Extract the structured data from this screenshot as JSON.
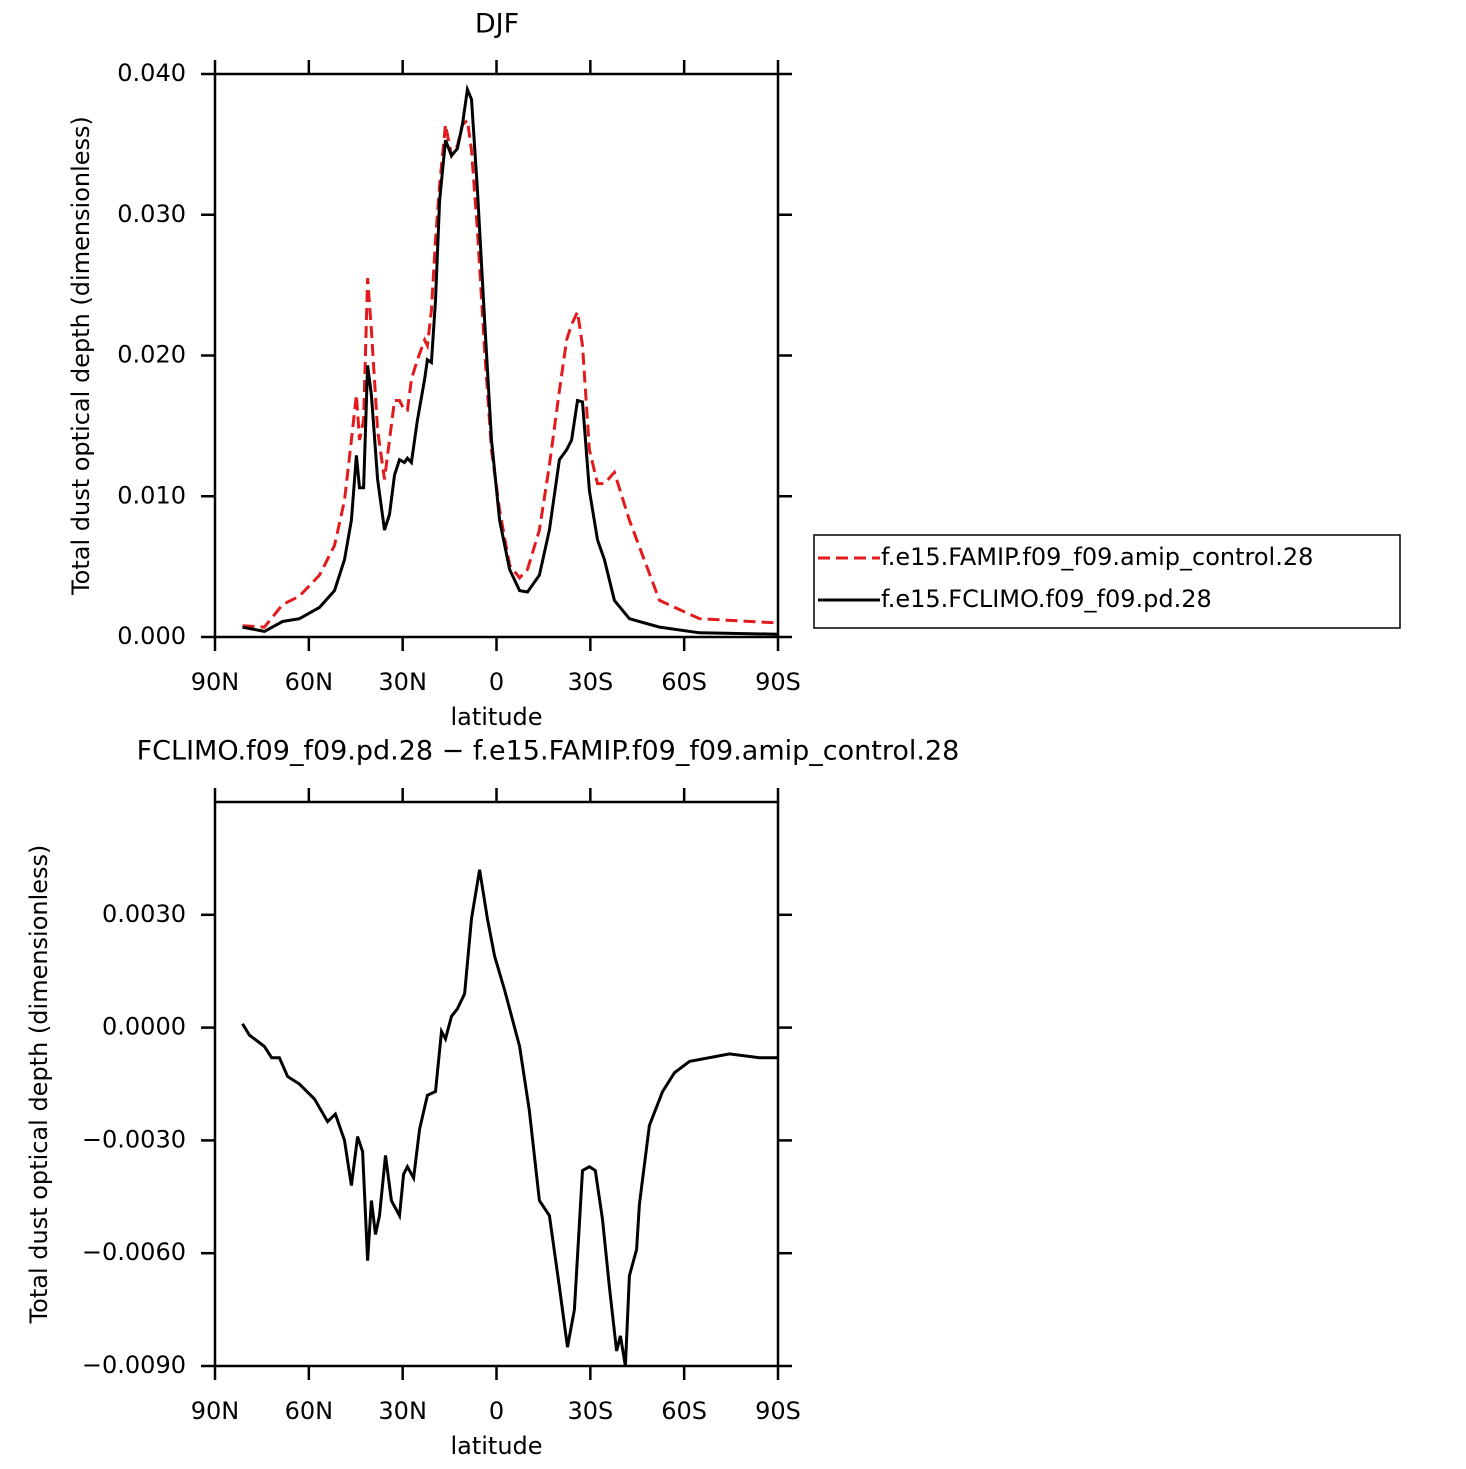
{
  "chart_data": [
    {
      "type": "line",
      "title": "DJF",
      "xlabel": "latitude",
      "ylabel": "Total dust optical depth (dimensionless)",
      "x": [
        81.2,
        74.2,
        68.4,
        63,
        56.6,
        51.8,
        48.6,
        46.4,
        44.8,
        43.8,
        42.5,
        41.2,
        40,
        38,
        35.8,
        34.2,
        32.6,
        31,
        29.4,
        28.5,
        27.2,
        25.3,
        23,
        22.1,
        20.8,
        19.5,
        18.2,
        16.3,
        14.4,
        12.5,
        10.9,
        9.3,
        8,
        6.1,
        3.8,
        1.6,
        -1,
        -4.2,
        -7.4,
        -9.9,
        -13.7,
        -16.9,
        -20.1,
        -22.4,
        -24,
        -25.9,
        -27.5,
        -29.7,
        -32.3,
        -34.5,
        -37.7,
        -42.5,
        -52.1,
        -64.9,
        -89.8
      ],
      "series": [
        {
          "name": "f.e15.FAMIP.f09_f09.amip_control.28",
          "color": "#e31a1c",
          "dash": true,
          "values": [
            0.0008,
            0.0007,
            0.0023,
            0.0029,
            0.0044,
            0.0065,
            0.0097,
            0.014,
            0.0172,
            0.014,
            0.0154,
            0.0255,
            0.0218,
            0.0147,
            0.0112,
            0.014,
            0.0168,
            0.0168,
            0.0161,
            0.0161,
            0.0183,
            0.0197,
            0.0211,
            0.0207,
            0.0232,
            0.0282,
            0.0321,
            0.0364,
            0.0342,
            0.0349,
            0.0364,
            0.0367,
            0.0346,
            0.0289,
            0.0204,
            0.0133,
            0.009,
            0.0051,
            0.0042,
            0.0048,
            0.0076,
            0.0122,
            0.0175,
            0.0211,
            0.0222,
            0.0231,
            0.0207,
            0.0133,
            0.0109,
            0.0109,
            0.0117,
            0.0083,
            0.0026,
            0.0013,
            0.001
          ]
        },
        {
          "name": "f.e15.FCLIMO.f09_f09.pd.28",
          "color": "#000000",
          "dash": false,
          "values": [
            0.0007,
            0.0004,
            0.0011,
            0.0013,
            0.0021,
            0.0033,
            0.0055,
            0.0083,
            0.0129,
            0.0106,
            0.0106,
            0.0193,
            0.0172,
            0.0112,
            0.0076,
            0.0087,
            0.0115,
            0.0126,
            0.0124,
            0.0127,
            0.0124,
            0.0154,
            0.0183,
            0.0197,
            0.0195,
            0.0239,
            0.031,
            0.0353,
            0.0342,
            0.0347,
            0.0364,
            0.0389,
            0.0382,
            0.0318,
            0.0225,
            0.014,
            0.0083,
            0.0048,
            0.0033,
            0.0032,
            0.0044,
            0.0076,
            0.0126,
            0.0133,
            0.014,
            0.0168,
            0.0167,
            0.0104,
            0.0069,
            0.0055,
            0.0026,
            0.0013,
            0.0007,
            0.0003,
            0.0002
          ]
        }
      ],
      "xlim": [
        90,
        -90
      ],
      "xticks": [
        {
          "value": 90,
          "label": "90N"
        },
        {
          "value": 60,
          "label": "60N"
        },
        {
          "value": 30,
          "label": "30N"
        },
        0,
        {
          "value": -30,
          "label": "30S"
        },
        {
          "value": -60,
          "label": "60S"
        },
        {
          "value": -90,
          "label": "90S"
        }
      ],
      "ylim": [
        0,
        0.04
      ],
      "yticks": [
        {
          "value": 0,
          "label": "0.000"
        },
        {
          "value": 0.01,
          "label": "0.010"
        },
        {
          "value": 0.02,
          "label": "0.020"
        },
        {
          "value": 0.03,
          "label": "0.030"
        },
        {
          "value": 0.04,
          "label": "0.040"
        }
      ],
      "legend": "right"
    },
    {
      "type": "line",
      "title": "FCLIMO.f09_f09.pd.28 − f.e15.FAMIP.f09_f09.amip_control.28",
      "xlabel": "latitude",
      "ylabel": "Total dust optical depth (dimensionless)",
      "x": [
        81.2,
        79,
        74.2,
        71.9,
        69.4,
        66.8,
        63,
        58.2,
        54,
        51.5,
        48.6,
        46.4,
        44.4,
        42.8,
        41.2,
        40,
        38.7,
        37.4,
        35.5,
        33.6,
        31,
        29.7,
        28.5,
        26.5,
        24.6,
        22.1,
        19.5,
        17.6,
        16.3,
        14.4,
        12.5,
        10.2,
        8,
        5.4,
        2.9,
        0.6,
        -2.6,
        -7.4,
        -10.5,
        -13.7,
        -16.9,
        -20.1,
        -22.7,
        -24.9,
        -27.5,
        -29.7,
        -31.6,
        -33.9,
        -36.1,
        -38.4,
        -39.6,
        -41.2,
        -42.5,
        -44.8,
        -45.7,
        -48.9,
        -53.1,
        -56.9,
        -61.7,
        -74.5,
        -84.1,
        -89.8
      ],
      "values": [
        0.0001,
        -0.0002,
        -0.0005,
        -0.0008,
        -0.0008,
        -0.0013,
        -0.0015,
        -0.0019,
        -0.0025,
        -0.0023,
        -0.003,
        -0.0042,
        -0.0029,
        -0.0033,
        -0.0062,
        -0.0046,
        -0.0055,
        -0.005,
        -0.0034,
        -0.0046,
        -0.005,
        -0.0039,
        -0.0037,
        -0.004,
        -0.0027,
        -0.0018,
        -0.0017,
        -0.0001,
        -0.0003,
        0.0003,
        0.0005,
        0.0009,
        0.0029,
        0.0042,
        0.0029,
        0.0019,
        0.001,
        -0.0005,
        -0.0022,
        -0.0046,
        -0.005,
        -0.0069,
        -0.0085,
        -0.0075,
        -0.0038,
        -0.0037,
        -0.0038,
        -0.0051,
        -0.0069,
        -0.0086,
        -0.0082,
        -0.009,
        -0.0066,
        -0.0059,
        -0.0047,
        -0.0026,
        -0.0017,
        -0.0012,
        -0.0009,
        -0.0007,
        -0.0008,
        -0.0008
      ],
      "color": "#000000",
      "xlim": [
        90,
        -90
      ],
      "xticks": [
        {
          "value": 90,
          "label": "90N"
        },
        {
          "value": 60,
          "label": "60N"
        },
        {
          "value": 30,
          "label": "30N"
        },
        0,
        {
          "value": -30,
          "label": "30S"
        },
        {
          "value": -60,
          "label": "60S"
        },
        {
          "value": -90,
          "label": "90S"
        }
      ],
      "ylim": [
        -0.009,
        0.006
      ],
      "yticks": [
        {
          "value": -0.009,
          "label": "−0.0090"
        },
        {
          "value": -0.006,
          "label": "−0.0060"
        },
        {
          "value": -0.003,
          "label": "−0.0030"
        },
        {
          "value": 0,
          "label": "0.0000"
        },
        {
          "value": 0.003,
          "label": "0.0030"
        }
      ]
    }
  ]
}
